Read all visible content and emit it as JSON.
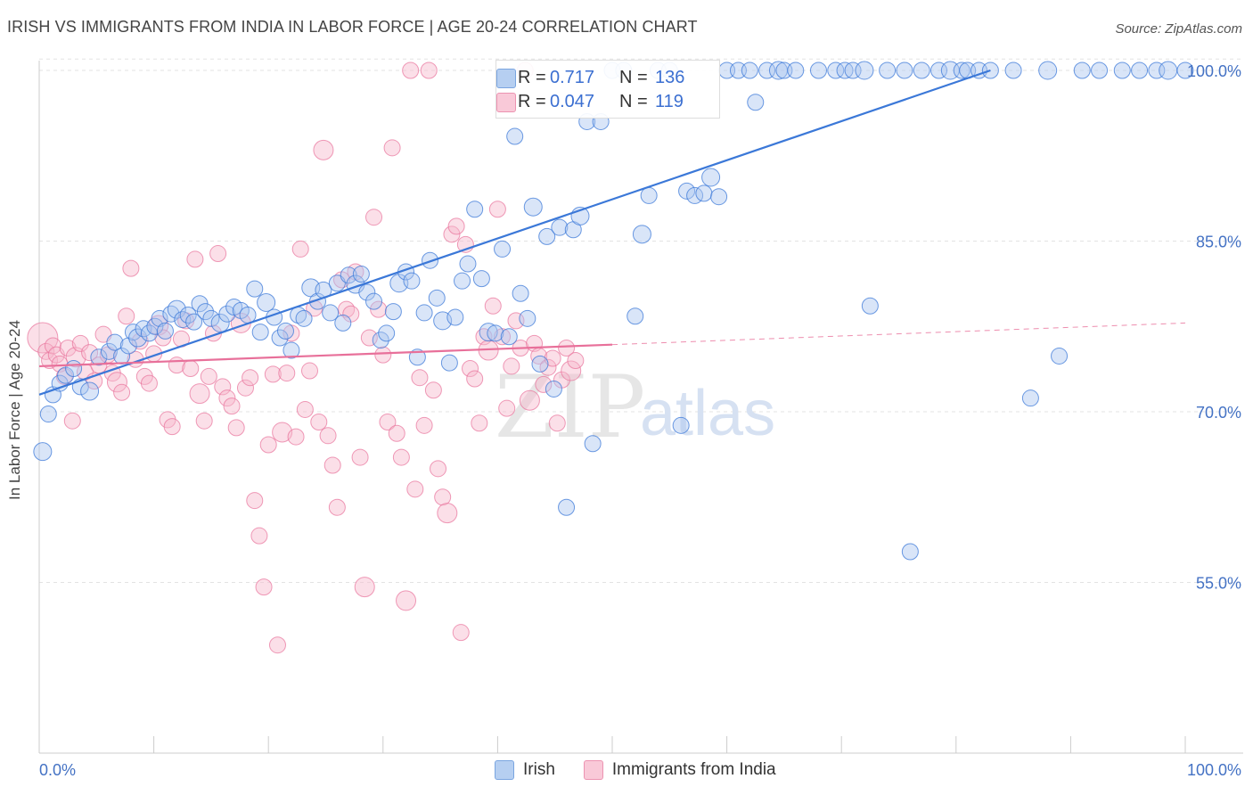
{
  "title": "IRISH VS IMMIGRANTS FROM INDIA IN LABOR FORCE | AGE 20-24 CORRELATION CHART",
  "source": "Source: ZipAtlas.com",
  "watermark": {
    "zip": "ZIP",
    "atlas": "atlas"
  },
  "colors": {
    "blue": "#3b78d8",
    "blue_fill": "#aac6ef",
    "pink": "#e8709a",
    "pink_fill": "#f6b8cc",
    "axis_text": "#4472c4",
    "grid": "#e3e3e3"
  },
  "legend_box": {
    "r_label": "R =",
    "n_label": "N =",
    "series": [
      {
        "r": "0.717",
        "n": "136"
      },
      {
        "r": "0.047",
        "n": "119"
      }
    ]
  },
  "legend": {
    "items": [
      "Irish",
      "Immigrants from India"
    ]
  },
  "chart_data": {
    "type": "scatter",
    "title": "IRISH VS IMMIGRANTS FROM INDIA IN LABOR FORCE | AGE 20-24 CORRELATION CHART",
    "xlabel": "",
    "ylabel": "In Labor Force | Age 20-24",
    "xlim": [
      0,
      100
    ],
    "ylim": [
      40,
      101
    ],
    "x_tick_labels": [
      "0.0%",
      "100.0%"
    ],
    "y_ticks": [
      55,
      70,
      85,
      100
    ],
    "y_tick_labels": [
      "55.0%",
      "70.0%",
      "85.0%",
      "100.0%"
    ],
    "grid": true,
    "legend_position": "bottom-center",
    "series": [
      {
        "name": "Irish",
        "r": 0.717,
        "n": 136,
        "trend": {
          "x": [
            0,
            83
          ],
          "y": [
            71.5,
            100.0
          ],
          "dashed_extension": false
        },
        "points": [
          [
            0.3,
            66.5
          ],
          [
            0.8,
            69.8
          ],
          [
            1.2,
            71.5
          ],
          [
            1.8,
            72.5
          ],
          [
            2.3,
            73.2
          ],
          [
            3.0,
            73.8
          ],
          [
            3.6,
            72.2
          ],
          [
            4.4,
            71.8
          ],
          [
            5.2,
            74.8
          ],
          [
            6.1,
            75.3
          ],
          [
            6.6,
            76.1
          ],
          [
            7.2,
            74.9
          ],
          [
            7.8,
            75.8
          ],
          [
            8.2,
            77.0
          ],
          [
            8.6,
            76.5
          ],
          [
            9.1,
            77.3
          ],
          [
            9.6,
            76.9
          ],
          [
            10.1,
            77.5
          ],
          [
            10.5,
            78.2
          ],
          [
            11.0,
            77.1
          ],
          [
            11.5,
            78.6
          ],
          [
            12.0,
            79.0
          ],
          [
            12.5,
            78.1
          ],
          [
            13.0,
            78.5
          ],
          [
            13.5,
            77.9
          ],
          [
            14.0,
            79.5
          ],
          [
            14.5,
            78.8
          ],
          [
            15.0,
            78.2
          ],
          [
            15.8,
            77.8
          ],
          [
            16.4,
            78.6
          ],
          [
            17.0,
            79.2
          ],
          [
            17.6,
            78.9
          ],
          [
            18.2,
            78.5
          ],
          [
            18.8,
            80.8
          ],
          [
            19.3,
            77.0
          ],
          [
            19.8,
            79.6
          ],
          [
            20.5,
            78.3
          ],
          [
            21.0,
            76.5
          ],
          [
            21.5,
            77.1
          ],
          [
            22.0,
            75.4
          ],
          [
            22.6,
            78.5
          ],
          [
            23.1,
            78.2
          ],
          [
            23.7,
            80.9
          ],
          [
            24.3,
            79.7
          ],
          [
            24.8,
            80.7
          ],
          [
            25.4,
            78.7
          ],
          [
            26.0,
            81.3
          ],
          [
            26.5,
            77.8
          ],
          [
            27.0,
            82.0
          ],
          [
            27.6,
            81.2
          ],
          [
            28.1,
            82.1
          ],
          [
            28.6,
            80.5
          ],
          [
            29.2,
            79.7
          ],
          [
            29.8,
            76.3
          ],
          [
            30.3,
            76.9
          ],
          [
            30.9,
            78.8
          ],
          [
            31.4,
            81.3
          ],
          [
            32.0,
            82.3
          ],
          [
            32.5,
            81.5
          ],
          [
            33.0,
            74.8
          ],
          [
            33.6,
            78.7
          ],
          [
            34.1,
            83.3
          ],
          [
            34.7,
            80.0
          ],
          [
            35.2,
            78.0
          ],
          [
            35.8,
            74.3
          ],
          [
            36.3,
            78.3
          ],
          [
            36.9,
            81.5
          ],
          [
            37.4,
            83.0
          ],
          [
            38.0,
            87.8
          ],
          [
            38.6,
            81.7
          ],
          [
            39.2,
            77.0
          ],
          [
            39.8,
            76.9
          ],
          [
            40.4,
            84.3
          ],
          [
            41.0,
            76.6
          ],
          [
            41.5,
            94.2
          ],
          [
            42.0,
            80.4
          ],
          [
            42.6,
            78.2
          ],
          [
            43.1,
            88.0
          ],
          [
            43.7,
            74.2
          ],
          [
            44.3,
            85.4
          ],
          [
            44.9,
            72.0
          ],
          [
            45.4,
            86.2
          ],
          [
            46.0,
            61.6
          ],
          [
            46.6,
            86.0
          ],
          [
            47.2,
            87.2
          ],
          [
            47.8,
            95.5
          ],
          [
            48.3,
            67.2
          ],
          [
            49.0,
            95.5
          ],
          [
            50.0,
            100
          ],
          [
            51.0,
            100
          ],
          [
            52.0,
            78.4
          ],
          [
            52.6,
            85.6
          ],
          [
            53.2,
            89.0
          ],
          [
            54.0,
            100
          ],
          [
            55.0,
            100
          ],
          [
            56.5,
            89.4
          ],
          [
            57.2,
            89.0
          ],
          [
            58.0,
            89.2
          ],
          [
            58.6,
            90.6
          ],
          [
            59.3,
            88.9
          ],
          [
            60.0,
            100
          ],
          [
            61.0,
            100
          ],
          [
            62.0,
            100
          ],
          [
            62.5,
            97.2
          ],
          [
            63.5,
            100
          ],
          [
            64.5,
            100
          ],
          [
            65.0,
            100
          ],
          [
            66.0,
            100
          ],
          [
            68.0,
            100
          ],
          [
            69.5,
            100
          ],
          [
            70.3,
            100
          ],
          [
            71.0,
            100
          ],
          [
            72.0,
            100
          ],
          [
            72.5,
            79.3
          ],
          [
            74.0,
            100
          ],
          [
            75.5,
            100
          ],
          [
            76.0,
            57.7
          ],
          [
            77.0,
            100
          ],
          [
            78.5,
            100
          ],
          [
            79.5,
            100
          ],
          [
            80.5,
            100
          ],
          [
            81.0,
            100
          ],
          [
            82.0,
            100
          ],
          [
            83.0,
            100
          ],
          [
            85.0,
            100
          ],
          [
            86.5,
            71.2
          ],
          [
            88.0,
            100
          ],
          [
            89.0,
            74.9
          ],
          [
            91.0,
            100
          ],
          [
            92.5,
            100
          ],
          [
            94.5,
            100
          ],
          [
            96.0,
            100
          ],
          [
            97.5,
            100
          ],
          [
            98.5,
            100
          ],
          [
            100,
            100
          ],
          [
            56.0,
            68.8
          ]
        ]
      },
      {
        "name": "Immigrants from India",
        "r": 0.047,
        "n": 119,
        "trend": {
          "x": [
            0,
            50
          ],
          "y": [
            74.0,
            75.9
          ],
          "dashed_to": [
            100,
            77.8
          ]
        },
        "points": [
          [
            0.3,
            76.5
          ],
          [
            0.6,
            75.3
          ],
          [
            0.9,
            74.5
          ],
          [
            1.2,
            75.8
          ],
          [
            1.5,
            75.0
          ],
          [
            1.8,
            74.2
          ],
          [
            2.2,
            73.1
          ],
          [
            2.5,
            75.6
          ],
          [
            2.9,
            69.2
          ],
          [
            3.2,
            74.8
          ],
          [
            3.6,
            76.0
          ],
          [
            4.0,
            73.5
          ],
          [
            4.4,
            75.2
          ],
          [
            4.8,
            72.7
          ],
          [
            5.2,
            74.1
          ],
          [
            5.6,
            76.8
          ],
          [
            6.0,
            75.0
          ],
          [
            6.4,
            73.4
          ],
          [
            6.8,
            72.6
          ],
          [
            7.2,
            71.7
          ],
          [
            7.6,
            78.4
          ],
          [
            8.0,
            82.6
          ],
          [
            8.4,
            74.6
          ],
          [
            8.8,
            76.2
          ],
          [
            9.2,
            73.1
          ],
          [
            9.6,
            72.5
          ],
          [
            10.0,
            75.1
          ],
          [
            10.4,
            77.6
          ],
          [
            10.8,
            76.5
          ],
          [
            11.2,
            69.3
          ],
          [
            11.6,
            68.7
          ],
          [
            12.0,
            74.1
          ],
          [
            12.4,
            76.4
          ],
          [
            12.8,
            78.0
          ],
          [
            13.2,
            73.8
          ],
          [
            13.6,
            83.4
          ],
          [
            14.0,
            71.6
          ],
          [
            14.4,
            69.2
          ],
          [
            14.8,
            73.1
          ],
          [
            15.2,
            76.9
          ],
          [
            15.6,
            83.9
          ],
          [
            16.0,
            72.2
          ],
          [
            16.4,
            71.2
          ],
          [
            16.8,
            70.5
          ],
          [
            17.2,
            68.6
          ],
          [
            17.6,
            77.8
          ],
          [
            18.0,
            72.1
          ],
          [
            18.4,
            73.0
          ],
          [
            18.8,
            62.2
          ],
          [
            19.2,
            59.1
          ],
          [
            19.6,
            54.6
          ],
          [
            20.0,
            67.1
          ],
          [
            20.4,
            73.3
          ],
          [
            20.8,
            49.5
          ],
          [
            21.2,
            68.2
          ],
          [
            21.6,
            73.4
          ],
          [
            22.0,
            76.9
          ],
          [
            22.4,
            67.8
          ],
          [
            22.8,
            84.3
          ],
          [
            23.2,
            70.2
          ],
          [
            23.6,
            73.6
          ],
          [
            24.0,
            79.1
          ],
          [
            24.4,
            69.1
          ],
          [
            24.8,
            93.0
          ],
          [
            25.2,
            67.9
          ],
          [
            25.6,
            65.3
          ],
          [
            26.0,
            61.6
          ],
          [
            26.4,
            81.6
          ],
          [
            26.8,
            79.0
          ],
          [
            27.2,
            78.6
          ],
          [
            27.6,
            82.3
          ],
          [
            28.0,
            66.0
          ],
          [
            28.4,
            54.6
          ],
          [
            28.8,
            76.5
          ],
          [
            29.2,
            87.1
          ],
          [
            29.6,
            79.0
          ],
          [
            30.0,
            75.0
          ],
          [
            30.4,
            69.1
          ],
          [
            30.8,
            93.2
          ],
          [
            31.2,
            68.1
          ],
          [
            31.6,
            66.0
          ],
          [
            32.0,
            53.4
          ],
          [
            32.4,
            100
          ],
          [
            32.8,
            63.2
          ],
          [
            33.2,
            73.0
          ],
          [
            33.6,
            68.8
          ],
          [
            34.0,
            100
          ],
          [
            34.4,
            71.9
          ],
          [
            34.8,
            65.0
          ],
          [
            35.2,
            62.5
          ],
          [
            35.6,
            61.1
          ],
          [
            36.0,
            85.6
          ],
          [
            36.4,
            86.3
          ],
          [
            36.8,
            50.6
          ],
          [
            37.2,
            84.7
          ],
          [
            37.6,
            73.8
          ],
          [
            38.0,
            72.9
          ],
          [
            38.4,
            69.0
          ],
          [
            38.8,
            76.6
          ],
          [
            39.2,
            75.4
          ],
          [
            39.6,
            79.3
          ],
          [
            40.0,
            87.8
          ],
          [
            40.4,
            76.6
          ],
          [
            40.8,
            70.3
          ],
          [
            41.2,
            74.0
          ],
          [
            41.6,
            78.0
          ],
          [
            42.0,
            75.6
          ],
          [
            42.4,
            100
          ],
          [
            42.8,
            71.0
          ],
          [
            43.2,
            76.0
          ],
          [
            43.6,
            74.9
          ],
          [
            44.0,
            72.4
          ],
          [
            44.4,
            73.9
          ],
          [
            44.8,
            74.7
          ],
          [
            45.2,
            69.0
          ],
          [
            45.6,
            72.8
          ],
          [
            46.0,
            75.6
          ],
          [
            46.4,
            73.6
          ],
          [
            46.8,
            74.5
          ]
        ]
      }
    ]
  }
}
